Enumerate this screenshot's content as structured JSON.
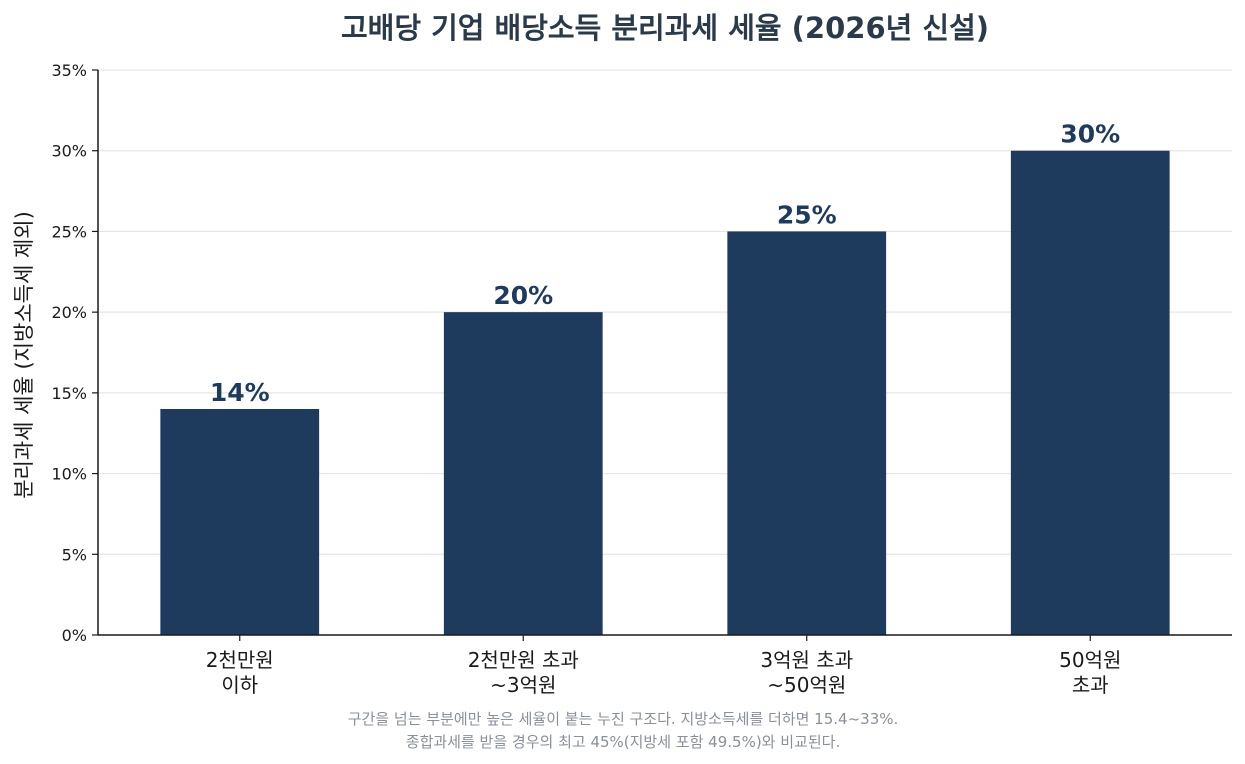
{
  "chart_data": {
    "type": "bar",
    "title": "고배당 기업 배당소득 분리과세 세율 (2026년 신설)",
    "ylabel": "분리과세 세율 (지방소득세 제외)",
    "xlabel": "",
    "categories": [
      [
        "2천만원",
        "이하"
      ],
      [
        "2천만원 초과",
        "~3억원"
      ],
      [
        "3억원 초과",
        "~50억원"
      ],
      [
        "50억원",
        "초과"
      ]
    ],
    "values": [
      14,
      20,
      25,
      30
    ],
    "data_labels": [
      "14%",
      "20%",
      "25%",
      "30%"
    ],
    "ylim": [
      0,
      35
    ],
    "yticks": [
      0,
      5,
      10,
      15,
      20,
      25,
      30,
      35
    ],
    "ytick_labels": [
      "0%",
      "5%",
      "10%",
      "15%",
      "20%",
      "25%",
      "30%",
      "35%"
    ],
    "grid": true,
    "bar_color": "#1e3a5c"
  },
  "notes": [
    "구간을 넘는 부분에만 높은 세율이 붙는 누진 구조다. 지방소득세를 더하면 15.4~33%.",
    "종합과세를 받을 경우의 최고 45%(지방세 포함 49.5%)와 비교된다."
  ]
}
